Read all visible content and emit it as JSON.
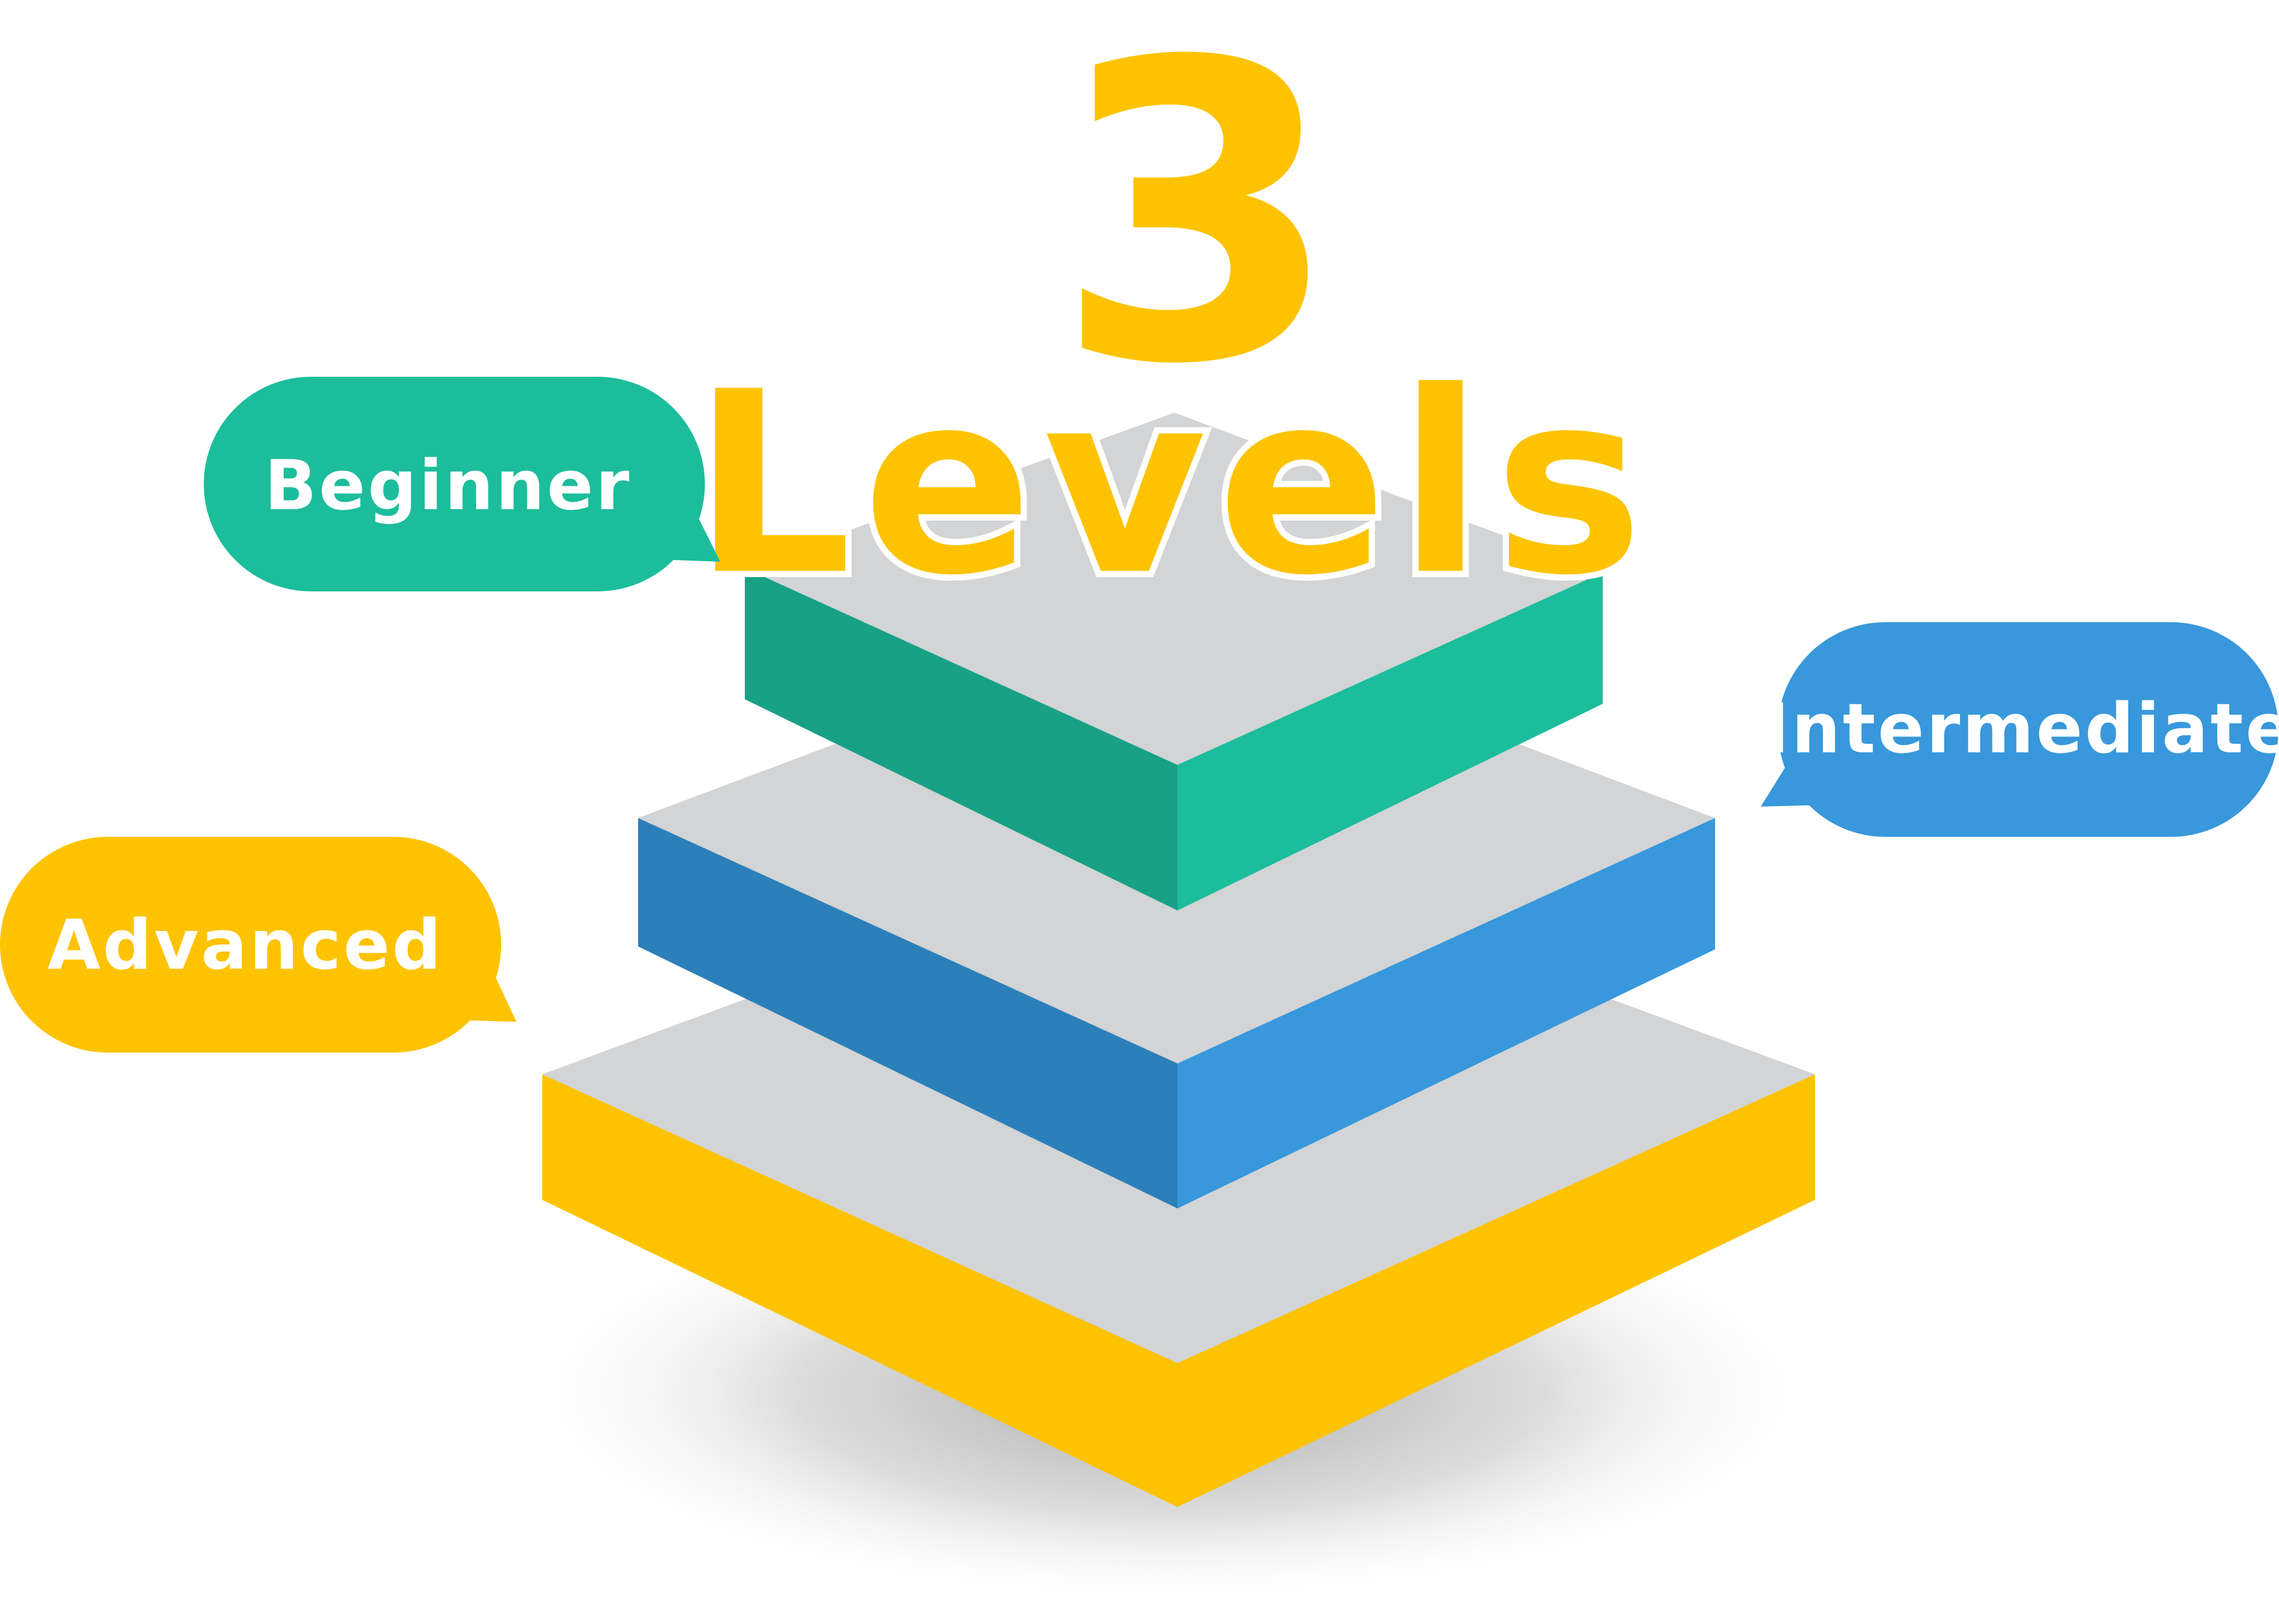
{
  "title": {
    "number": "3",
    "word": "Levels"
  },
  "levels": [
    {
      "label": "Beginner",
      "color_left": "#18a185",
      "color_right": "#1cbd9b"
    },
    {
      "label": "Intermediate",
      "color_left": "#2c80b9",
      "color_right": "#3898db"
    },
    {
      "label": "Advanced",
      "color_left": "#fdc300",
      "color_right": "#fdc300"
    }
  ],
  "colors": {
    "title": "#fdc300",
    "slab_top": "#d2d4d6",
    "shadow": "#8c8c8c"
  }
}
